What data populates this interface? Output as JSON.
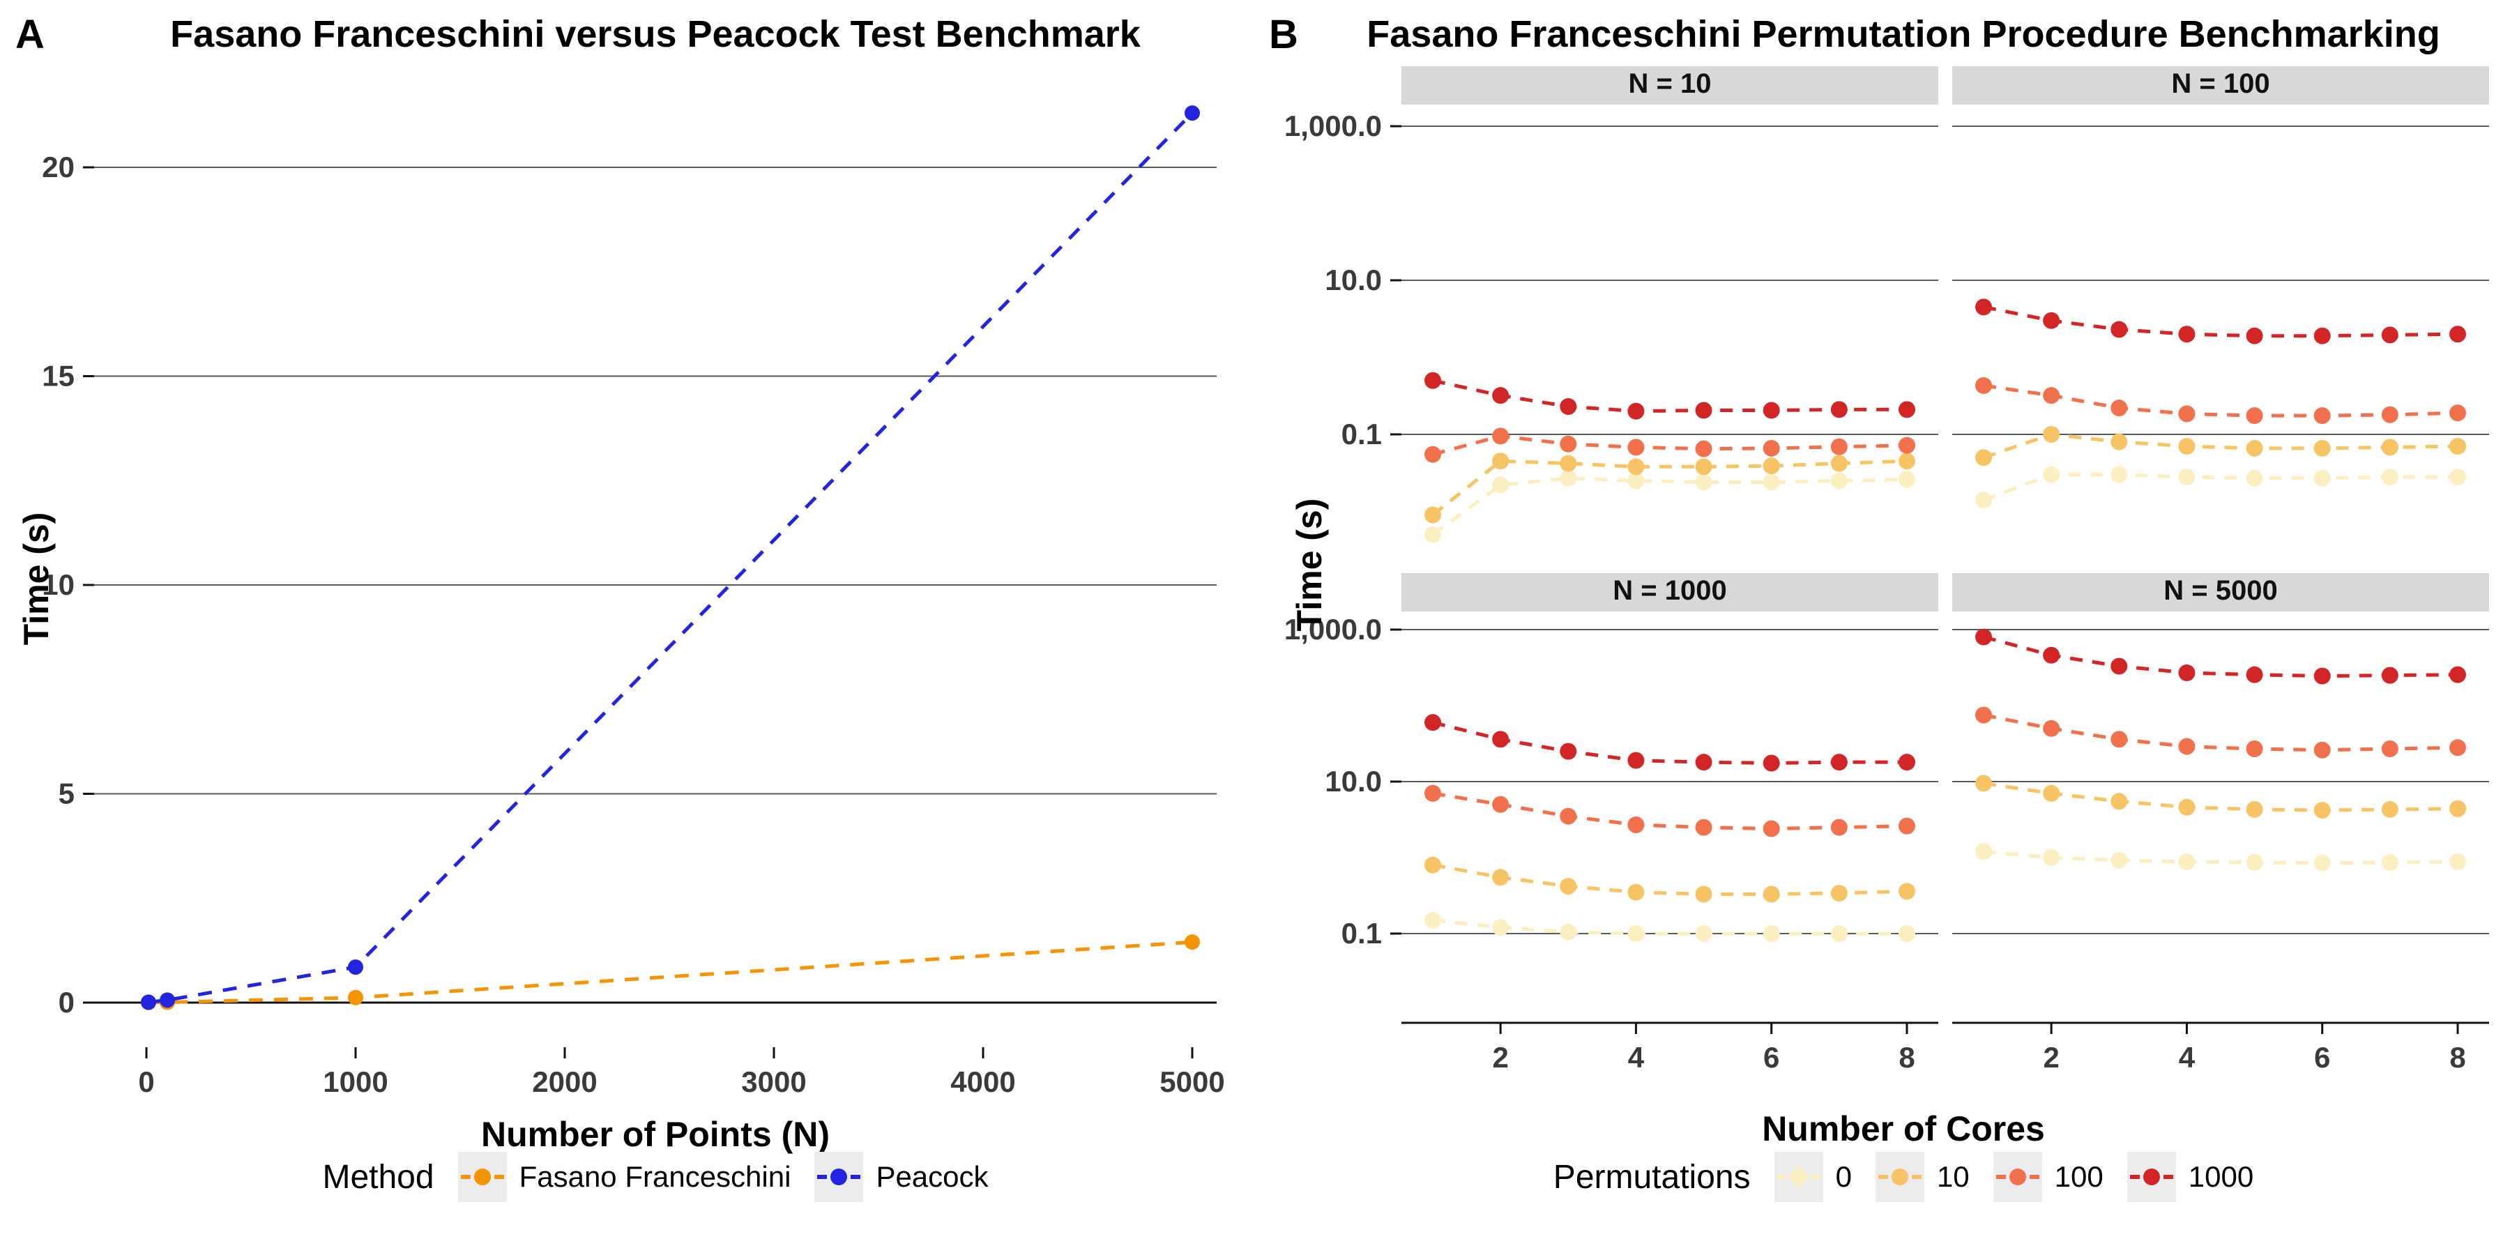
{
  "panel_labels": {
    "a": "A",
    "b": "B"
  },
  "chart_data": [
    {
      "type": "line",
      "panel": "A",
      "title": "Fasano Franceschini versus Peacock Test Benchmark",
      "xlabel": "Number of Points (N)",
      "ylabel": "Time (s)",
      "legend_title": "Method",
      "legend_position": "bottom",
      "grid": "horizontal-only",
      "x_ticks": [
        0,
        1000,
        2000,
        3000,
        4000,
        5000
      ],
      "y_ticks": [
        0,
        5,
        10,
        15,
        20
      ],
      "xlim": [
        -250,
        5250
      ],
      "ylim": [
        -1.05,
        22.4
      ],
      "x": [
        10,
        100,
        1000,
        5000
      ],
      "line_style": "dashed",
      "series": [
        {
          "name": "Fasano Franceschini",
          "color": "#F59300",
          "values": [
            0.001,
            0.006,
            0.12,
            1.45
          ]
        },
        {
          "name": "Peacock",
          "color": "#2424E0",
          "values": [
            0.01,
            0.06,
            0.85,
            21.3
          ]
        }
      ]
    },
    {
      "type": "line",
      "panel": "B",
      "title": "Fasano Franceschini Permutation Procedure Benchmarking",
      "xlabel": "Number of Cores",
      "ylabel": "Time (s)",
      "legend_title": "Permutations",
      "legend_position": "bottom",
      "grid": "horizontal-only",
      "yscale": "log10",
      "x_ticks": [
        2,
        4,
        6,
        8
      ],
      "y_ticks": [
        {
          "label": "1,000.0",
          "value": 1000
        },
        {
          "label": "10.0",
          "value": 10
        },
        {
          "label": "0.1",
          "value": 0.1
        }
      ],
      "cores": [
        1,
        2,
        3,
        4,
        5,
        6,
        7,
        8
      ],
      "line_style": "dashed",
      "series_order": [
        "0",
        "10",
        "100",
        "1000"
      ],
      "colors": {
        "0": "#FBEFC1",
        "10": "#F6C465",
        "100": "#F1714D",
        "1000": "#D22626"
      },
      "strip_fill": "#D8D8D8",
      "facets": [
        {
          "label": "N = 10",
          "series": {
            "0": [
              0.005,
              0.022,
              0.027,
              0.025,
              0.024,
              0.024,
              0.025,
              0.026
            ],
            "10": [
              0.009,
              0.045,
              0.042,
              0.038,
              0.038,
              0.039,
              0.042,
              0.045
            ],
            "100": [
              0.055,
              0.095,
              0.075,
              0.068,
              0.065,
              0.066,
              0.069,
              0.072
            ],
            "1000": [
              0.5,
              0.32,
              0.23,
              0.2,
              0.205,
              0.205,
              0.21,
              0.21
            ]
          }
        },
        {
          "label": "N = 100",
          "series": {
            "0": [
              0.014,
              0.03,
              0.03,
              0.028,
              0.027,
              0.027,
              0.028,
              0.028
            ],
            "10": [
              0.05,
              0.1,
              0.08,
              0.07,
              0.066,
              0.066,
              0.068,
              0.07
            ],
            "100": [
              0.43,
              0.32,
              0.22,
              0.185,
              0.175,
              0.175,
              0.18,
              0.19
            ],
            "1000": [
              4.5,
              3.0,
              2.3,
              2.0,
              1.9,
              1.9,
              1.95,
              2.0
            ]
          }
        },
        {
          "label": "N = 1000",
          "series": {
            "0": [
              0.15,
              0.12,
              0.105,
              0.1,
              0.1,
              0.1,
              0.1,
              0.1
            ],
            "10": [
              0.8,
              0.55,
              0.42,
              0.35,
              0.33,
              0.33,
              0.34,
              0.36
            ],
            "100": [
              7.0,
              5.0,
              3.5,
              2.7,
              2.5,
              2.4,
              2.5,
              2.6
            ],
            "1000": [
              60,
              36,
              25,
              19,
              18,
              17.5,
              18,
              18
            ]
          }
        },
        {
          "label": "N = 5000",
          "series": {
            "0": [
              1.2,
              1.0,
              0.92,
              0.88,
              0.86,
              0.85,
              0.86,
              0.88
            ],
            "10": [
              9.5,
              7.0,
              5.5,
              4.6,
              4.3,
              4.2,
              4.3,
              4.4
            ],
            "100": [
              75,
              50,
              36,
              29,
              27,
              26,
              27,
              28
            ],
            "1000": [
              800,
              460,
              330,
              270,
              255,
              245,
              250,
              255
            ]
          }
        }
      ]
    }
  ]
}
